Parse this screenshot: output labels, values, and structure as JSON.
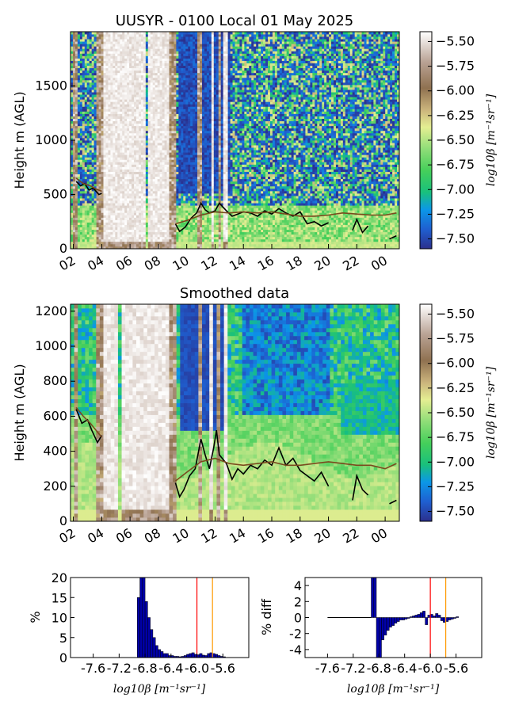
{
  "chart_data": [
    {
      "type": "heatmap",
      "title": "UUSYR - 0100 Local 01 May 2025",
      "xlabel": "",
      "ylabel": "Height m (AGL)",
      "x_tick_labels": [
        "02",
        "04",
        "06",
        "08",
        "10",
        "12",
        "14",
        "16",
        "18",
        "20",
        "22",
        "00"
      ],
      "x_hours": [
        2,
        4,
        6,
        8,
        10,
        12,
        14,
        16,
        18,
        20,
        22,
        24
      ],
      "xlim": [
        1.8,
        25.0
      ],
      "ylim": [
        0,
        2000
      ],
      "y_ticks": [
        0,
        500,
        1000,
        1500
      ],
      "colorbar": {
        "label": "log10β [m⁻¹sr⁻¹]",
        "ticks": [
          -5.5,
          -5.75,
          -6.0,
          -6.25,
          -6.5,
          -6.75,
          -7.0,
          -7.25,
          -7.5
        ],
        "tick_labels": [
          "−5.50",
          "−5.75",
          "−6.00",
          "−6.25",
          "−6.50",
          "−6.75",
          "−7.00",
          "−7.25",
          "−7.50"
        ],
        "range": [
          -7.6,
          -5.4
        ]
      },
      "overlay_series": [
        {
          "color": "#000000",
          "points": [
            [
              2.2,
              620
            ],
            [
              2.5,
              580
            ],
            [
              2.8,
              600
            ],
            [
              3.1,
              540
            ],
            [
              3.4,
              560
            ],
            [
              3.8,
              500
            ],
            [
              4.0,
              510
            ],
            [
              9.2,
              230
            ],
            [
              9.5,
              160
            ],
            [
              9.9,
              200
            ],
            [
              10.3,
              280
            ],
            [
              10.7,
              330
            ],
            [
              11.0,
              420
            ],
            [
              11.3,
              360
            ],
            [
              11.6,
              330
            ],
            [
              12.0,
              350
            ],
            [
              12.3,
              420
            ],
            [
              12.8,
              350
            ],
            [
              13.2,
              300
            ],
            [
              13.6,
              320
            ],
            [
              14.0,
              340
            ],
            [
              14.5,
              330
            ],
            [
              15.0,
              300
            ],
            [
              15.5,
              350
            ],
            [
              16.0,
              320
            ],
            [
              16.5,
              370
            ],
            [
              17.0,
              330
            ],
            [
              17.5,
              300
            ],
            [
              18.0,
              340
            ],
            [
              18.5,
              230
            ],
            [
              19.0,
              250
            ],
            [
              19.5,
              210
            ],
            [
              20.0,
              240
            ],
            [
              21.7,
              170
            ],
            [
              22.0,
              270
            ],
            [
              22.4,
              150
            ],
            [
              22.8,
              210
            ],
            [
              24.3,
              90
            ],
            [
              24.8,
              120
            ]
          ]
        },
        {
          "color": "#7a4a1e",
          "points": [
            [
              2.2,
              650
            ],
            [
              2.7,
              600
            ],
            [
              3.2,
              580
            ],
            [
              3.6,
              550
            ],
            [
              4.0,
              530
            ],
            [
              9.2,
              230
            ],
            [
              10.0,
              260
            ],
            [
              11.0,
              310
            ],
            [
              12.0,
              340
            ],
            [
              13.0,
              330
            ],
            [
              14.0,
              340
            ],
            [
              15.0,
              330
            ],
            [
              16.0,
              340
            ],
            [
              17.0,
              320
            ],
            [
              18.0,
              300
            ],
            [
              19.0,
              300
            ],
            [
              20.0,
              310
            ],
            [
              21.0,
              330
            ],
            [
              22.0,
              320
            ],
            [
              23.0,
              310
            ],
            [
              24.0,
              310
            ],
            [
              24.8,
              330
            ]
          ]
        }
      ]
    },
    {
      "type": "heatmap",
      "title": "Smoothed data",
      "xlabel": "",
      "ylabel": "Height m (AGL)",
      "x_tick_labels": [
        "02",
        "04",
        "06",
        "08",
        "10",
        "12",
        "14",
        "16",
        "18",
        "20",
        "22",
        "00"
      ],
      "x_hours": [
        2,
        4,
        6,
        8,
        10,
        12,
        14,
        16,
        18,
        20,
        22,
        24
      ],
      "xlim": [
        1.8,
        25.0
      ],
      "ylim": [
        0,
        1240
      ],
      "y_ticks": [
        0,
        200,
        400,
        600,
        800,
        1000,
        1200
      ],
      "colorbar": {
        "label": "log10β [m⁻¹sr⁻¹]",
        "ticks": [
          -5.5,
          -5.75,
          -6.0,
          -6.25,
          -6.5,
          -6.75,
          -7.0,
          -7.25,
          -7.5
        ],
        "tick_labels": [
          "−5.50",
          "−5.75",
          "−6.00",
          "−6.25",
          "−6.50",
          "−6.75",
          "−7.00",
          "−7.25",
          "−7.50"
        ],
        "range": [
          -7.6,
          -5.4
        ]
      },
      "overlay_series": [
        {
          "color": "#000000",
          "points": [
            [
              2.2,
              640
            ],
            [
              2.6,
              560
            ],
            [
              3.0,
              580
            ],
            [
              3.3,
              520
            ],
            [
              3.7,
              450
            ],
            [
              4.0,
              490
            ],
            [
              9.2,
              220
            ],
            [
              9.5,
              140
            ],
            [
              9.8,
              180
            ],
            [
              10.2,
              260
            ],
            [
              10.6,
              300
            ],
            [
              11.0,
              470
            ],
            [
              11.3,
              380
            ],
            [
              11.6,
              300
            ],
            [
              11.9,
              420
            ],
            [
              12.1,
              520
            ],
            [
              12.3,
              380
            ],
            [
              12.8,
              330
            ],
            [
              13.2,
              240
            ],
            [
              13.6,
              300
            ],
            [
              14.0,
              270
            ],
            [
              14.5,
              320
            ],
            [
              15.0,
              300
            ],
            [
              15.5,
              350
            ],
            [
              16.0,
              320
            ],
            [
              16.5,
              420
            ],
            [
              17.0,
              320
            ],
            [
              17.5,
              360
            ],
            [
              18.0,
              290
            ],
            [
              18.5,
              260
            ],
            [
              19.0,
              230
            ],
            [
              19.5,
              280
            ],
            [
              20.0,
              200
            ],
            [
              21.7,
              120
            ],
            [
              22.0,
              260
            ],
            [
              22.4,
              180
            ],
            [
              22.8,
              150
            ],
            [
              24.3,
              100
            ],
            [
              24.8,
              120
            ]
          ]
        },
        {
          "color": "#7a4a1e",
          "points": [
            [
              2.2,
              650
            ],
            [
              2.7,
              600
            ],
            [
              3.2,
              560
            ],
            [
              3.6,
              520
            ],
            [
              4.0,
              480
            ],
            [
              9.2,
              230
            ],
            [
              10.0,
              280
            ],
            [
              11.0,
              340
            ],
            [
              12.0,
              360
            ],
            [
              13.0,
              330
            ],
            [
              14.0,
              320
            ],
            [
              15.0,
              330
            ],
            [
              16.0,
              340
            ],
            [
              17.0,
              320
            ],
            [
              18.0,
              320
            ],
            [
              19.0,
              330
            ],
            [
              20.0,
              340
            ],
            [
              21.0,
              330
            ],
            [
              22.0,
              320
            ],
            [
              23.0,
              320
            ],
            [
              24.0,
              300
            ],
            [
              24.8,
              330
            ]
          ]
        }
      ]
    },
    {
      "type": "bar",
      "xlabel": "log10β [m⁻¹sr⁻¹]",
      "ylabel": "%",
      "x_tick_labels": [
        "-7.6",
        "-7.2",
        "-6.8",
        "-6.4",
        "-6.0",
        "-5.6"
      ],
      "x_ticks": [
        -7.6,
        -7.2,
        -6.8,
        -6.4,
        -6.0,
        -5.6
      ],
      "xlim": [
        -7.95,
        -5.2
      ],
      "ylim": [
        0,
        20
      ],
      "y_ticks": [
        0,
        5,
        10,
        15,
        20
      ],
      "bin_width": 0.04,
      "bins": [
        -6.92,
        -6.88,
        -6.84,
        -6.8,
        -6.76,
        -6.72,
        -6.68,
        -6.64,
        -6.6,
        -6.56,
        -6.52,
        -6.48,
        -6.44,
        -6.4,
        -6.36,
        -6.32,
        -6.28,
        -6.24,
        -6.2,
        -6.16,
        -6.12,
        -6.08,
        -6.04,
        -6.0,
        -5.96,
        -5.92,
        -5.88,
        -5.84,
        -5.8,
        -5.76,
        -5.72,
        -5.68,
        -5.64,
        -5.6
      ],
      "values": [
        15,
        20,
        20,
        14,
        10,
        7,
        5,
        3,
        2,
        1.5,
        1,
        1,
        0.5,
        0.5,
        0.3,
        0.3,
        0.2,
        0.3,
        0.5,
        0.8,
        1,
        1.2,
        0.8,
        0.7,
        1,
        0.6,
        0.5,
        1,
        1.2,
        1,
        0.8,
        0.5,
        0.3,
        0.2
      ],
      "vlines": [
        {
          "x": -6.0,
          "color": "#ff0000"
        },
        {
          "x": -5.76,
          "color": "#ff9900"
        }
      ]
    },
    {
      "type": "bar",
      "xlabel": "log10β [m⁻¹sr⁻¹]",
      "ylabel": "% diff",
      "x_tick_labels": [
        "-7.6",
        "-7.2",
        "-6.8",
        "-6.4",
        "-6.0",
        "-5.6"
      ],
      "x_ticks": [
        -7.6,
        -7.2,
        -6.8,
        -6.4,
        -6.0,
        -5.6
      ],
      "xlim": [
        -7.95,
        -5.2
      ],
      "ylim": [
        -5,
        5
      ],
      "y_ticks": [
        -4,
        -2,
        0,
        2,
        4
      ],
      "bin_width": 0.04,
      "bins": [
        -6.92,
        -6.88,
        -6.84,
        -6.8,
        -6.76,
        -6.72,
        -6.68,
        -6.64,
        -6.6,
        -6.56,
        -6.52,
        -6.48,
        -6.44,
        -6.4,
        -6.36,
        -6.32,
        -6.28,
        -6.24,
        -6.2,
        -6.16,
        -6.12,
        -6.08,
        -6.04,
        -6.0,
        -5.96,
        -5.92,
        -5.88,
        -5.84,
        -5.8,
        -5.76,
        -5.72,
        -5.68,
        -5.64,
        -5.6
      ],
      "values": [
        5,
        5,
        -5,
        -5,
        -2.8,
        -2.2,
        -1.6,
        -1.2,
        -1.0,
        -0.7,
        -0.5,
        -0.3,
        -0.3,
        -0.2,
        -0.1,
        0.1,
        0.2,
        0.3,
        0.4,
        0.6,
        0.8,
        -0.9,
        0.3,
        0.4,
        0.2,
        0.5,
        0.3,
        -0.4,
        -0.6,
        -0.5,
        -0.3,
        -0.2,
        -0.1,
        0.1
      ],
      "vlines": [
        {
          "x": -6.0,
          "color": "#ff0000"
        },
        {
          "x": -5.76,
          "color": "#ff9900"
        }
      ]
    }
  ]
}
